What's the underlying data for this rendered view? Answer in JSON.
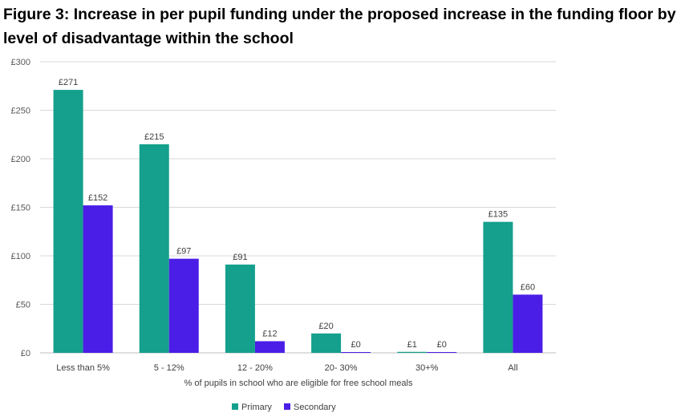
{
  "chart_data": {
    "type": "bar",
    "title": "Figure 3: Increase in per pupil funding under the proposed increase in the funding floor by level of disadvantage within the school",
    "xlabel": "% of pupils in school who are eligible for free school meals",
    "ylabel": "",
    "categories": [
      "Less than 5%",
      "5 - 12%",
      "12 - 20%",
      "20- 30%",
      "30+%",
      "All"
    ],
    "series": [
      {
        "name": "Primary",
        "color": "#14a08c",
        "values": [
          271,
          215,
          91,
          20,
          1,
          135
        ],
        "labels": [
          "£271",
          "£215",
          "£91",
          "£20",
          "£1",
          "£135"
        ]
      },
      {
        "name": "Secondary",
        "color": "#4a1ee6",
        "values": [
          152,
          97,
          12,
          0,
          0,
          60
        ],
        "labels": [
          "£152",
          "£97",
          "£12",
          "£0",
          "£0",
          "£60"
        ]
      }
    ],
    "ylim": [
      0,
      300
    ],
    "yticks": [
      0,
      50,
      100,
      150,
      200,
      250,
      300
    ],
    "ytick_labels": [
      "£0",
      "£50",
      "£100",
      "£150",
      "£200",
      "£250",
      "£300"
    ],
    "grid": true,
    "legend_position": "bottom"
  }
}
